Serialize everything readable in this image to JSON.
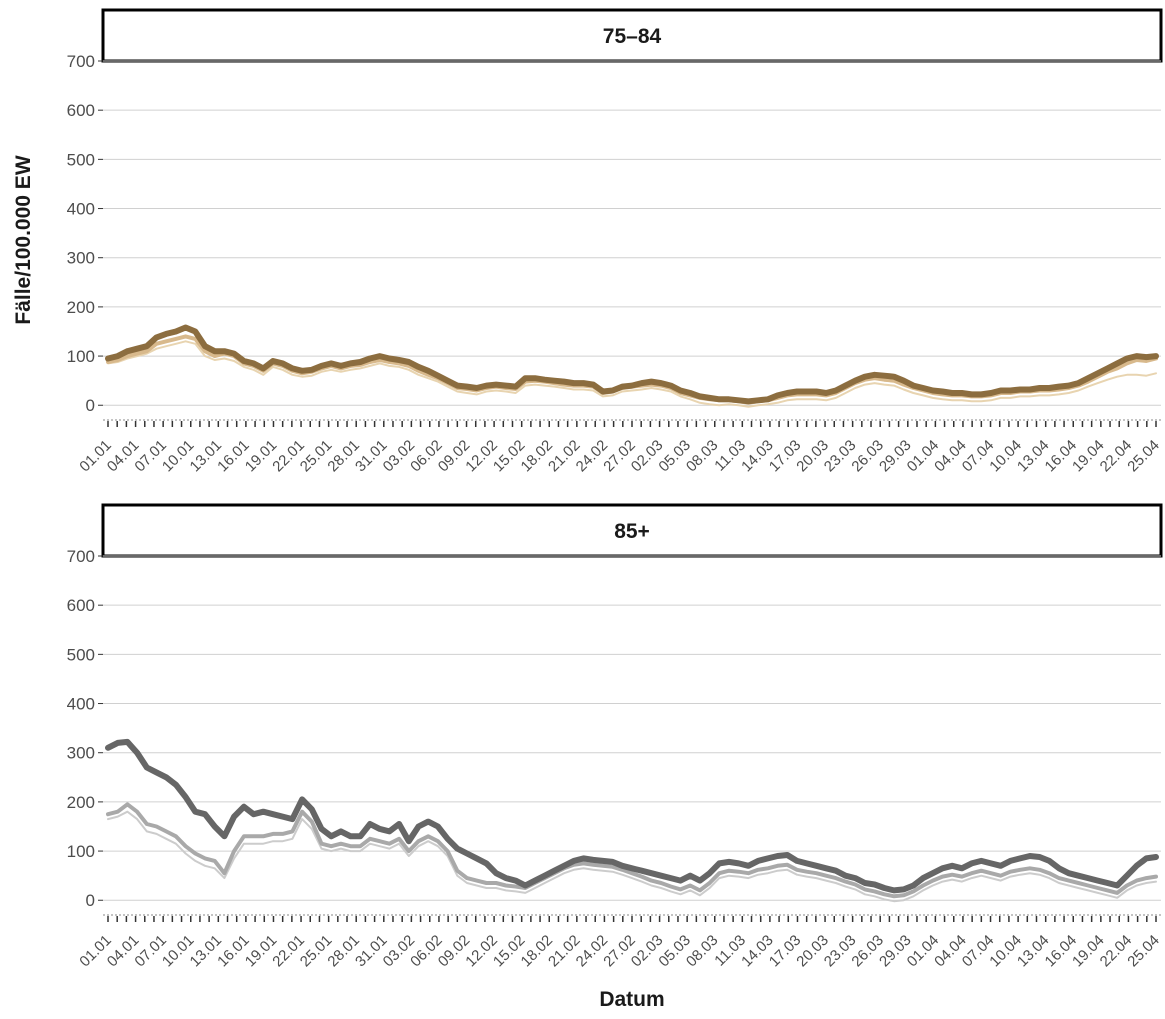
{
  "chart_data": {
    "type": "line",
    "xlabel": "Datum",
    "ylabel": "Fälle/100.000 EW",
    "ylim": [
      0,
      700
    ],
    "yticks": [
      0,
      100,
      200,
      300,
      400,
      500,
      600,
      700
    ],
    "grid": true,
    "x_tick_labels": [
      "01.01",
      "04.01",
      "07.01",
      "10.01",
      "13.01",
      "16.01",
      "19.01",
      "22.01",
      "25.01",
      "28.01",
      "31.01",
      "03.02",
      "06.02",
      "09.02",
      "12.02",
      "15.02",
      "18.02",
      "21.02",
      "24.02",
      "27.02",
      "02.03",
      "05.03",
      "08.03",
      "11.03",
      "14.03",
      "17.03",
      "20.03",
      "23.03",
      "26.03",
      "29.03",
      "01.04",
      "04.04",
      "07.04",
      "10.04",
      "13.04",
      "16.04",
      "19.04",
      "22.04",
      "25.04"
    ],
    "panels": [
      {
        "strip": "75–84",
        "colors": [
          "#8c6d3f",
          "#d8b98c",
          "#e8d4b0"
        ],
        "series": [
          {
            "values": [
              95,
              100,
              110,
              115,
              120,
              138,
              145,
              150,
              158,
              150,
              120,
              110,
              110,
              105,
              90,
              85,
              75,
              90,
              85,
              75,
              70,
              72,
              80,
              85,
              80,
              85,
              88,
              95,
              100,
              95,
              92,
              88,
              78,
              70,
              60,
              50,
              40,
              38,
              35,
              40,
              42,
              40,
              38,
              55,
              55,
              52,
              50,
              48,
              45,
              45,
              42,
              28,
              30,
              38,
              40,
              45,
              48,
              45,
              40,
              30,
              25,
              18,
              15,
              12,
              12,
              10,
              8,
              10,
              12,
              20,
              25,
              28,
              28,
              28,
              25,
              30,
              40,
              50,
              58,
              62,
              60,
              58,
              50,
              40,
              35,
              30,
              28,
              25,
              25,
              22,
              22,
              25,
              30,
              30,
              32,
              32,
              35,
              35,
              38,
              40,
              45,
              55,
              65,
              75,
              85,
              95,
              100,
              98,
              100
            ]
          },
          {
            "values": [
              88,
              92,
              100,
              105,
              110,
              125,
              130,
              135,
              140,
              135,
              110,
              100,
              105,
              100,
              85,
              80,
              70,
              85,
              80,
              70,
              65,
              68,
              75,
              80,
              75,
              80,
              82,
              88,
              92,
              88,
              85,
              80,
              70,
              62,
              55,
              45,
              35,
              33,
              30,
              35,
              38,
              35,
              33,
              48,
              50,
              48,
              45,
              42,
              40,
              40,
              38,
              25,
              28,
              35,
              38,
              40,
              42,
              40,
              35,
              25,
              20,
              15,
              12,
              10,
              10,
              8,
              5,
              8,
              10,
              15,
              20,
              22,
              22,
              22,
              20,
              25,
              35,
              45,
              52,
              55,
              52,
              50,
              42,
              35,
              30,
              25,
              22,
              20,
              20,
              18,
              18,
              20,
              25,
              25,
              28,
              28,
              30,
              30,
              32,
              35,
              40,
              48,
              58,
              68,
              75,
              85,
              92,
              90,
              95
            ]
          },
          {
            "values": [
              85,
              88,
              95,
              100,
              105,
              115,
              120,
              125,
              130,
              125,
              100,
              92,
              95,
              90,
              78,
              72,
              62,
              78,
              72,
              62,
              58,
              60,
              68,
              72,
              68,
              72,
              75,
              80,
              85,
              80,
              78,
              72,
              62,
              55,
              48,
              38,
              28,
              25,
              22,
              28,
              30,
              28,
              25,
              40,
              42,
              40,
              38,
              35,
              32,
              32,
              30,
              18,
              20,
              28,
              30,
              32,
              35,
              32,
              28,
              18,
              12,
              5,
              2,
              0,
              2,
              0,
              -3,
              0,
              2,
              5,
              10,
              12,
              12,
              12,
              10,
              15,
              25,
              35,
              42,
              45,
              42,
              40,
              32,
              25,
              20,
              15,
              12,
              10,
              10,
              8,
              8,
              10,
              15,
              15,
              18,
              18,
              20,
              20,
              22,
              25,
              30,
              38,
              45,
              52,
              58,
              62,
              62,
              60,
              65
            ]
          }
        ]
      },
      {
        "strip": "85+",
        "colors": [
          "#666666",
          "#a9a9a9",
          "#cccccc"
        ],
        "series": [
          {
            "values": [
              310,
              320,
              322,
              300,
              270,
              260,
              250,
              235,
              210,
              180,
              175,
              150,
              130,
              170,
              190,
              175,
              180,
              175,
              170,
              165,
              205,
              185,
              145,
              130,
              140,
              130,
              130,
              155,
              145,
              140,
              155,
              120,
              150,
              160,
              150,
              125,
              105,
              95,
              85,
              75,
              55,
              45,
              40,
              30,
              40,
              50,
              60,
              70,
              80,
              85,
              82,
              80,
              78,
              70,
              65,
              60,
              55,
              50,
              45,
              40,
              50,
              40,
              55,
              75,
              78,
              75,
              70,
              80,
              85,
              90,
              92,
              80,
              75,
              70,
              65,
              60,
              50,
              45,
              35,
              32,
              25,
              20,
              22,
              30,
              45,
              55,
              65,
              70,
              65,
              75,
              80,
              75,
              70,
              80,
              85,
              90,
              88,
              80,
              65,
              55,
              50,
              45,
              40,
              35,
              30,
              50,
              70,
              85,
              88
            ]
          },
          {
            "values": [
              175,
              180,
              195,
              180,
              155,
              150,
              140,
              130,
              110,
              95,
              85,
              80,
              55,
              100,
              130,
              130,
              130,
              135,
              135,
              140,
              180,
              160,
              115,
              110,
              115,
              110,
              110,
              125,
              120,
              115,
              125,
              100,
              120,
              130,
              120,
              100,
              60,
              45,
              40,
              35,
              35,
              30,
              28,
              25,
              35,
              45,
              55,
              65,
              72,
              75,
              72,
              70,
              68,
              62,
              55,
              48,
              40,
              35,
              28,
              22,
              30,
              20,
              35,
              55,
              60,
              58,
              55,
              62,
              65,
              70,
              72,
              62,
              58,
              55,
              50,
              45,
              38,
              32,
              22,
              18,
              12,
              8,
              10,
              18,
              30,
              40,
              48,
              52,
              48,
              55,
              60,
              55,
              50,
              58,
              62,
              65,
              62,
              55,
              45,
              40,
              35,
              30,
              25,
              20,
              15,
              30,
              40,
              45,
              48
            ]
          },
          {
            "values": [
              165,
              170,
              180,
              165,
              140,
              135,
              125,
              115,
              95,
              80,
              70,
              65,
              45,
              85,
              115,
              115,
              115,
              120,
              120,
              125,
              165,
              145,
              105,
              100,
              105,
              100,
              100,
              115,
              110,
              105,
              115,
              90,
              110,
              120,
              110,
              90,
              50,
              35,
              30,
              25,
              25,
              20,
              18,
              15,
              25,
              35,
              45,
              55,
              62,
              65,
              62,
              60,
              58,
              52,
              45,
              38,
              30,
              25,
              18,
              12,
              20,
              10,
              25,
              45,
              50,
              48,
              45,
              52,
              55,
              60,
              62,
              52,
              48,
              45,
              40,
              35,
              28,
              22,
              12,
              8,
              2,
              -2,
              0,
              8,
              20,
              30,
              38,
              42,
              38,
              45,
              50,
              45,
              40,
              48,
              52,
              55,
              52,
              45,
              35,
              30,
              25,
              20,
              15,
              10,
              5,
              20,
              30,
              35,
              38
            ]
          }
        ]
      }
    ]
  }
}
